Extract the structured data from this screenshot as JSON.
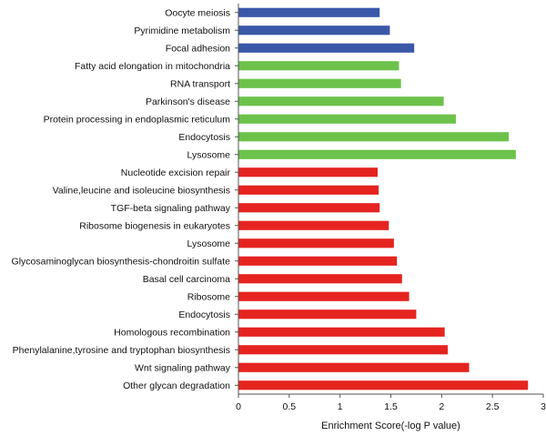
{
  "chart_data": {
    "type": "bar",
    "orientation": "horizontal",
    "title": "",
    "xlabel": "Enrichment Score(-log P value)",
    "ylabel": "",
    "xlim": [
      0,
      3
    ],
    "x_ticks": [
      "0",
      "0.5",
      "1",
      "1.5",
      "2",
      "2.5",
      "3"
    ],
    "x_tick_values": [
      0,
      0.5,
      1,
      1.5,
      2,
      2.5,
      3
    ],
    "grid": false,
    "legend": "none",
    "colors": {
      "blue": "#3a58a8",
      "green": "#6cc24a",
      "red": "#e52420"
    },
    "bars": [
      {
        "label": "Oocyte meiosis",
        "value": 1.39,
        "color": "blue"
      },
      {
        "label": "Pyrimidine metabolism",
        "value": 1.49,
        "color": "blue"
      },
      {
        "label": "Focal adhesion",
        "value": 1.73,
        "color": "blue"
      },
      {
        "label": "Fatty acid elongation in mitochondria",
        "value": 1.58,
        "color": "green"
      },
      {
        "label": "RNA transport",
        "value": 1.6,
        "color": "green"
      },
      {
        "label": "Parkinson's disease",
        "value": 2.02,
        "color": "green"
      },
      {
        "label": "Protein processing in endoplasmic reticulum",
        "value": 2.14,
        "color": "green"
      },
      {
        "label": "Endocytosis",
        "value": 2.66,
        "color": "green"
      },
      {
        "label": "Lysosome",
        "value": 2.73,
        "color": "green"
      },
      {
        "label": "Nucleotide excision repair",
        "value": 1.37,
        "color": "red"
      },
      {
        "label": "Valine,leucine and isoleucine biosynthesis",
        "value": 1.38,
        "color": "red"
      },
      {
        "label": "TGF-beta signaling pathway",
        "value": 1.39,
        "color": "red"
      },
      {
        "label": "Ribosome biogenesis in eukaryotes",
        "value": 1.48,
        "color": "red"
      },
      {
        "label": "Lysosome",
        "value": 1.53,
        "color": "red"
      },
      {
        "label": "Glycosaminoglycan biosynthesis-chondroitin sulfate",
        "value": 1.56,
        "color": "red"
      },
      {
        "label": "Basal cell carcinoma",
        "value": 1.61,
        "color": "red"
      },
      {
        "label": "Ribosome",
        "value": 1.68,
        "color": "red"
      },
      {
        "label": "Endocytosis",
        "value": 1.75,
        "color": "red"
      },
      {
        "label": "Homologous recombination",
        "value": 2.03,
        "color": "red"
      },
      {
        "label": "Phenylalanine,tyrosine and tryptophan biosynthesis",
        "value": 2.06,
        "color": "red"
      },
      {
        "label": "Wnt signaling pathway",
        "value": 2.27,
        "color": "red"
      },
      {
        "label": "Other glycan degradation",
        "value": 2.85,
        "color": "red"
      }
    ]
  }
}
